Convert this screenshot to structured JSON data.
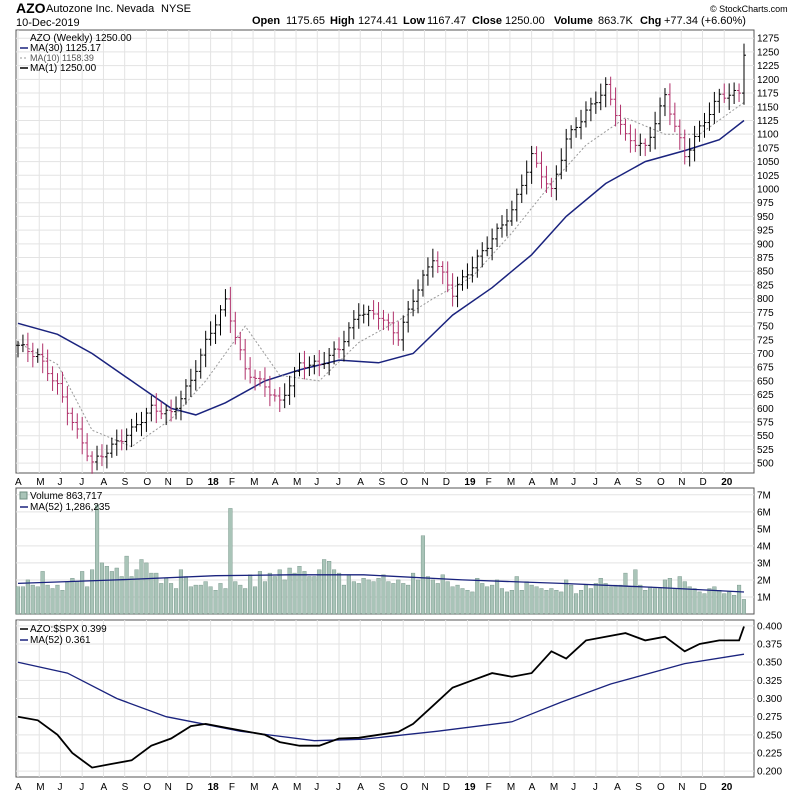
{
  "header": {
    "symbol": "AZO",
    "company": "Autozone Inc. Nevada",
    "exchange": "NYSE",
    "date": "10-Dec-2019",
    "open_label": "Open",
    "open": "1175.65",
    "high_label": "High",
    "high": "1274.41",
    "low_label": "Low",
    "low": "1167.47",
    "close_label": "Close",
    "close": "1250.00",
    "volume_label": "Volume",
    "volume": "863.7K",
    "chg_label": "Chg",
    "chg": "+77.34 (+6.60%)",
    "credit": "© StockCharts.com"
  },
  "colors": {
    "up_bar": "#000000",
    "down_bar": "#b0306a",
    "ma30": "#1a237e",
    "ma10": "#999999",
    "volume_fill": "#a9c4b8",
    "volume_stroke": "#6f8f82",
    "ratio_line": "#000000",
    "grid": "#e3e3e3"
  },
  "chart_data": [
    {
      "type": "line",
      "panel": "price",
      "legend": {
        "main": "AZO (Weekly) 1250.00",
        "ma30": "MA(30) 1125.17",
        "ma10": "MA(10) 1158.39",
        "ma1": "MA(1) 1250.00"
      },
      "legend_position": "top-left",
      "y_ticks": [
        "1275",
        "1250",
        "1225",
        "1200",
        "1175",
        "1150",
        "1125",
        "1100",
        "1075",
        "1050",
        "1025",
        "1000",
        "975",
        "950",
        "925",
        "900",
        "875",
        "850",
        "825",
        "800",
        "775",
        "750",
        "725",
        "700",
        "675",
        "650",
        "625",
        "600",
        "575",
        "550",
        "525",
        "500"
      ],
      "ylim": [
        482,
        1290
      ],
      "price_close": [
        {
          "x": 0,
          "y": 715
        },
        {
          "x": 4,
          "y": 695
        },
        {
          "x": 8,
          "y": 640
        },
        {
          "x": 11,
          "y": 575
        },
        {
          "x": 15,
          "y": 500
        },
        {
          "x": 19,
          "y": 530
        },
        {
          "x": 23,
          "y": 560
        },
        {
          "x": 27,
          "y": 600
        },
        {
          "x": 31,
          "y": 590
        },
        {
          "x": 35,
          "y": 650
        },
        {
          "x": 38,
          "y": 720
        },
        {
          "x": 42,
          "y": 795
        },
        {
          "x": 46,
          "y": 670
        },
        {
          "x": 50,
          "y": 640
        },
        {
          "x": 53,
          "y": 610
        },
        {
          "x": 57,
          "y": 680
        },
        {
          "x": 61,
          "y": 680
        },
        {
          "x": 65,
          "y": 710
        },
        {
          "x": 69,
          "y": 775
        },
        {
          "x": 73,
          "y": 770
        },
        {
          "x": 77,
          "y": 730
        },
        {
          "x": 80,
          "y": 800
        },
        {
          "x": 84,
          "y": 875
        },
        {
          "x": 88,
          "y": 810
        },
        {
          "x": 92,
          "y": 860
        },
        {
          "x": 96,
          "y": 910
        },
        {
          "x": 100,
          "y": 960
        },
        {
          "x": 104,
          "y": 1060
        },
        {
          "x": 108,
          "y": 995
        },
        {
          "x": 111,
          "y": 1090
        },
        {
          "x": 115,
          "y": 1140
        },
        {
          "x": 119,
          "y": 1185
        },
        {
          "x": 123,
          "y": 1095
        },
        {
          "x": 127,
          "y": 1075
        },
        {
          "x": 131,
          "y": 1170
        },
        {
          "x": 135,
          "y": 1060
        },
        {
          "x": 138,
          "y": 1110
        },
        {
          "x": 142,
          "y": 1170
        },
        {
          "x": 146,
          "y": 1175
        },
        {
          "x": 147,
          "y": 1250
        }
      ],
      "ma10": [
        {
          "x": 0,
          "y": 720
        },
        {
          "x": 8,
          "y": 680
        },
        {
          "x": 15,
          "y": 560
        },
        {
          "x": 23,
          "y": 530
        },
        {
          "x": 31,
          "y": 580
        },
        {
          "x": 38,
          "y": 650
        },
        {
          "x": 46,
          "y": 750
        },
        {
          "x": 53,
          "y": 660
        },
        {
          "x": 61,
          "y": 650
        },
        {
          "x": 69,
          "y": 720
        },
        {
          "x": 77,
          "y": 760
        },
        {
          "x": 84,
          "y": 800
        },
        {
          "x": 92,
          "y": 840
        },
        {
          "x": 100,
          "y": 920
        },
        {
          "x": 108,
          "y": 1010
        },
        {
          "x": 115,
          "y": 1080
        },
        {
          "x": 123,
          "y": 1130
        },
        {
          "x": 131,
          "y": 1100
        },
        {
          "x": 138,
          "y": 1100
        },
        {
          "x": 147,
          "y": 1158
        }
      ],
      "ma30": [
        {
          "x": 0,
          "y": 755
        },
        {
          "x": 8,
          "y": 735
        },
        {
          "x": 15,
          "y": 700
        },
        {
          "x": 23,
          "y": 650
        },
        {
          "x": 31,
          "y": 600
        },
        {
          "x": 36,
          "y": 588
        },
        {
          "x": 42,
          "y": 610
        },
        {
          "x": 50,
          "y": 650
        },
        {
          "x": 57,
          "y": 670
        },
        {
          "x": 65,
          "y": 688
        },
        {
          "x": 73,
          "y": 683
        },
        {
          "x": 80,
          "y": 700
        },
        {
          "x": 88,
          "y": 770
        },
        {
          "x": 96,
          "y": 820
        },
        {
          "x": 104,
          "y": 880
        },
        {
          "x": 111,
          "y": 950
        },
        {
          "x": 119,
          "y": 1010
        },
        {
          "x": 127,
          "y": 1050
        },
        {
          "x": 135,
          "y": 1070
        },
        {
          "x": 142,
          "y": 1090
        },
        {
          "x": 147,
          "y": 1125
        }
      ]
    },
    {
      "type": "bar",
      "panel": "volume",
      "legend": {
        "main": "Volume 863,717",
        "ma52": "MA(52) 1,286,235"
      },
      "y_ticks": [
        "7M",
        "6M",
        "5M",
        "4M",
        "3M",
        "2M",
        "1M"
      ],
      "ylim": [
        0,
        7.4
      ],
      "unit": "millions",
      "values": [
        1.6,
        1.6,
        2.0,
        1.7,
        1.6,
        2.5,
        1.7,
        1.5,
        1.7,
        1.4,
        1.9,
        2.1,
        1.9,
        2.5,
        1.6,
        2.6,
        6.4,
        3.0,
        2.8,
        2.5,
        2.7,
        2.2,
        3.4,
        2.2,
        2.6,
        3.2,
        3.0,
        2.4,
        2.4,
        1.8,
        2.1,
        1.8,
        1.5,
        2.6,
        2.2,
        1.6,
        1.7,
        1.7,
        1.9,
        1.6,
        1.4,
        1.8,
        1.5,
        6.2,
        1.9,
        1.7,
        1.5,
        2.3,
        1.6,
        2.5,
        1.9,
        2.4,
        2.2,
        2.6,
        2.0,
        2.7,
        2.4,
        2.8,
        2.5,
        2.2,
        2.2,
        2.6,
        3.2,
        3.1,
        2.6,
        2.4,
        1.7,
        2.3,
        1.9,
        1.8,
        2.1,
        2.0,
        1.9,
        2.1,
        2.3,
        1.9,
        1.8,
        2.0,
        1.8,
        1.7,
        2.4,
        2.0,
        4.6,
        2.2,
        2.0,
        1.8,
        2.3,
        1.9,
        1.6,
        1.7,
        1.5,
        1.4,
        1.3,
        2.1,
        1.8,
        1.6,
        1.7,
        2.0,
        1.5,
        1.3,
        1.4,
        2.2,
        1.4,
        1.9,
        1.7,
        1.6,
        1.5,
        1.4,
        1.5,
        1.4,
        1.3,
        2.0,
        1.7,
        1.2,
        1.4,
        1.7,
        1.5,
        1.8,
        2.1,
        1.8,
        1.6,
        1.7,
        1.7,
        2.4,
        1.6,
        2.6,
        1.7,
        1.4,
        1.6,
        1.5,
        1.5,
        2.0,
        2.1,
        1.5,
        2.2,
        1.9,
        1.6,
        1.5,
        1.3,
        1.2,
        1.5,
        1.6,
        1.4,
        1.2,
        1.3,
        1.1,
        1.7,
        0.86
      ],
      "ma52": [
        {
          "x": 0,
          "y": 1.8
        },
        {
          "x": 20,
          "y": 2.0
        },
        {
          "x": 40,
          "y": 2.25
        },
        {
          "x": 55,
          "y": 2.3
        },
        {
          "x": 70,
          "y": 2.3
        },
        {
          "x": 90,
          "y": 2.0
        },
        {
          "x": 110,
          "y": 1.8
        },
        {
          "x": 130,
          "y": 1.55
        },
        {
          "x": 147,
          "y": 1.29
        }
      ]
    },
    {
      "type": "line",
      "panel": "ratio",
      "legend": {
        "main": "AZO:$SPX 0.399",
        "ma52": "MA(52) 0.361"
      },
      "y_ticks": [
        "0.400",
        "0.375",
        "0.350",
        "0.325",
        "0.300",
        "0.275",
        "0.250",
        "0.225",
        "0.200"
      ],
      "ylim": [
        0.192,
        0.408
      ],
      "ratio": [
        {
          "x": 0,
          "y": 0.275
        },
        {
          "x": 4,
          "y": 0.27
        },
        {
          "x": 8,
          "y": 0.25
        },
        {
          "x": 11,
          "y": 0.225
        },
        {
          "x": 15,
          "y": 0.205
        },
        {
          "x": 19,
          "y": 0.21
        },
        {
          "x": 23,
          "y": 0.215
        },
        {
          "x": 27,
          "y": 0.235
        },
        {
          "x": 31,
          "y": 0.245
        },
        {
          "x": 35,
          "y": 0.262
        },
        {
          "x": 38,
          "y": 0.265
        },
        {
          "x": 42,
          "y": 0.26
        },
        {
          "x": 46,
          "y": 0.255
        },
        {
          "x": 50,
          "y": 0.25
        },
        {
          "x": 53,
          "y": 0.24
        },
        {
          "x": 57,
          "y": 0.235
        },
        {
          "x": 61,
          "y": 0.235
        },
        {
          "x": 65,
          "y": 0.245
        },
        {
          "x": 69,
          "y": 0.246
        },
        {
          "x": 73,
          "y": 0.25
        },
        {
          "x": 77,
          "y": 0.254
        },
        {
          "x": 80,
          "y": 0.265
        },
        {
          "x": 84,
          "y": 0.29
        },
        {
          "x": 88,
          "y": 0.315
        },
        {
          "x": 92,
          "y": 0.325
        },
        {
          "x": 96,
          "y": 0.335
        },
        {
          "x": 100,
          "y": 0.33
        },
        {
          "x": 104,
          "y": 0.335
        },
        {
          "x": 108,
          "y": 0.365
        },
        {
          "x": 111,
          "y": 0.355
        },
        {
          "x": 115,
          "y": 0.38
        },
        {
          "x": 119,
          "y": 0.385
        },
        {
          "x": 123,
          "y": 0.39
        },
        {
          "x": 127,
          "y": 0.38
        },
        {
          "x": 131,
          "y": 0.385
        },
        {
          "x": 135,
          "y": 0.365
        },
        {
          "x": 138,
          "y": 0.375
        },
        {
          "x": 142,
          "y": 0.38
        },
        {
          "x": 146,
          "y": 0.38
        },
        {
          "x": 147,
          "y": 0.399
        }
      ],
      "ma52": [
        {
          "x": 0,
          "y": 0.35
        },
        {
          "x": 10,
          "y": 0.335
        },
        {
          "x": 20,
          "y": 0.3
        },
        {
          "x": 30,
          "y": 0.275
        },
        {
          "x": 45,
          "y": 0.255
        },
        {
          "x": 60,
          "y": 0.242
        },
        {
          "x": 70,
          "y": 0.244
        },
        {
          "x": 85,
          "y": 0.255
        },
        {
          "x": 100,
          "y": 0.268
        },
        {
          "x": 110,
          "y": 0.295
        },
        {
          "x": 120,
          "y": 0.32
        },
        {
          "x": 135,
          "y": 0.348
        },
        {
          "x": 147,
          "y": 0.361
        }
      ]
    }
  ],
  "x_axis": {
    "labels": [
      {
        "x": 0,
        "label": "A"
      },
      {
        "x": 4.3,
        "label": "M"
      },
      {
        "x": 8.6,
        "label": "J"
      },
      {
        "x": 13,
        "label": "J"
      },
      {
        "x": 17.3,
        "label": "A"
      },
      {
        "x": 21.6,
        "label": "S"
      },
      {
        "x": 26,
        "label": "O"
      },
      {
        "x": 30.3,
        "label": "N"
      },
      {
        "x": 34.6,
        "label": "D"
      },
      {
        "x": 39,
        "label": "18",
        "bold": true
      },
      {
        "x": 43.3,
        "label": "F"
      },
      {
        "x": 47.6,
        "label": "M"
      },
      {
        "x": 52,
        "label": "A"
      },
      {
        "x": 56.3,
        "label": "M"
      },
      {
        "x": 60.6,
        "label": "J"
      },
      {
        "x": 65,
        "label": "J"
      },
      {
        "x": 69.3,
        "label": "A"
      },
      {
        "x": 73.6,
        "label": "S"
      },
      {
        "x": 78,
        "label": "O"
      },
      {
        "x": 82.3,
        "label": "N"
      },
      {
        "x": 86.6,
        "label": "D"
      },
      {
        "x": 91,
        "label": "19",
        "bold": true
      },
      {
        "x": 95.3,
        "label": "F"
      },
      {
        "x": 99.6,
        "label": "M"
      },
      {
        "x": 104,
        "label": "A"
      },
      {
        "x": 108.3,
        "label": "M"
      },
      {
        "x": 112.6,
        "label": "J"
      },
      {
        "x": 117,
        "label": "J"
      },
      {
        "x": 121.3,
        "label": "A"
      },
      {
        "x": 125.6,
        "label": "S"
      },
      {
        "x": 130,
        "label": "O"
      },
      {
        "x": 134.3,
        "label": "N"
      },
      {
        "x": 138.6,
        "label": "D"
      },
      {
        "x": 143,
        "label": "20",
        "bold": true
      }
    ]
  }
}
